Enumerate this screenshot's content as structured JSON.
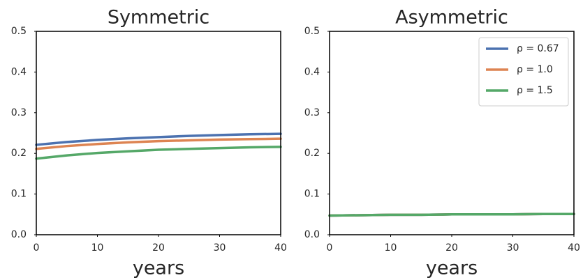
{
  "chart_data": [
    {
      "type": "line",
      "title": "Symmetric",
      "xlabel": "years",
      "x": [
        0,
        5,
        10,
        15,
        20,
        25,
        30,
        35,
        40
      ],
      "series": [
        {
          "color": "#4c72b0",
          "values": [
            0.221,
            0.228,
            0.233,
            0.237,
            0.24,
            0.243,
            0.245,
            0.247,
            0.248
          ]
        },
        {
          "color": "#dd8452",
          "values": [
            0.211,
            0.218,
            0.223,
            0.227,
            0.23,
            0.232,
            0.234,
            0.235,
            0.236
          ]
        },
        {
          "color": "#55a868",
          "values": [
            0.187,
            0.195,
            0.201,
            0.205,
            0.209,
            0.211,
            0.213,
            0.215,
            0.216
          ]
        }
      ],
      "xlim": [
        0,
        40
      ],
      "xticks": [
        0,
        10,
        20,
        30,
        40
      ],
      "ylim": [
        0,
        0.5
      ],
      "yticks": [
        {
          "value": 0,
          "label": "0.0"
        },
        0.1,
        0.2,
        0.3,
        0.4,
        0.5
      ]
    },
    {
      "type": "line",
      "title": "Asymmetric",
      "xlabel": "years",
      "x": [
        0,
        5,
        10,
        15,
        20,
        25,
        30,
        35,
        40
      ],
      "series": [
        {
          "name": "ρ = 0.67",
          "color": "#4c72b0",
          "values": [
            0.047,
            0.048,
            0.049,
            0.049,
            0.05,
            0.05,
            0.05,
            0.051,
            0.051
          ]
        },
        {
          "name": "ρ = 1.0",
          "color": "#dd8452",
          "values": [
            0.047,
            0.048,
            0.049,
            0.049,
            0.05,
            0.05,
            0.05,
            0.051,
            0.051
          ]
        },
        {
          "name": "ρ = 1.5",
          "color": "#55a868",
          "values": [
            0.047,
            0.048,
            0.049,
            0.049,
            0.05,
            0.05,
            0.05,
            0.051,
            0.051
          ]
        }
      ],
      "xlim": [
        0,
        40
      ],
      "xticks": [
        0,
        10,
        20,
        30,
        40
      ],
      "ylim": [
        0,
        0.5
      ],
      "yticks": [
        {
          "value": 0,
          "label": "0.0"
        },
        0.1,
        0.2,
        0.3,
        0.4,
        0.5
      ],
      "legend": "upper right"
    }
  ]
}
